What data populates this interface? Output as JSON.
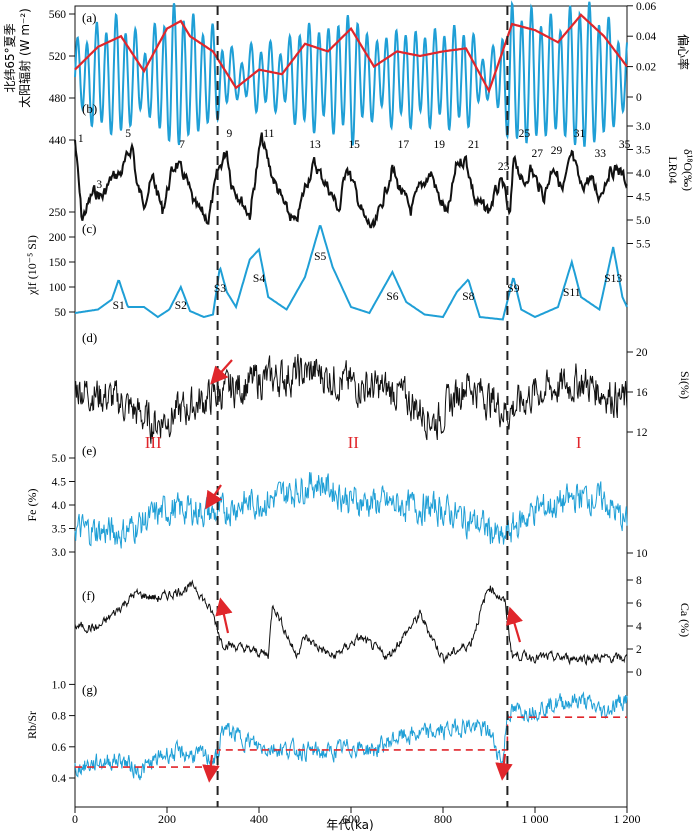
{
  "figure": {
    "x_axis": {
      "label": "年代(ka)",
      "ticks": [
        0,
        200,
        400,
        600,
        800,
        1000,
        1200
      ],
      "tick_labels": [
        "0",
        "200",
        "400",
        "600",
        "800",
        "1 000",
        "1 200"
      ],
      "range": [
        0,
        1200
      ]
    },
    "boundaries_ka": [
      310,
      940
    ],
    "stage_labels": [
      {
        "text": "III",
        "ka": 170,
        "panel": "e"
      },
      {
        "text": "II",
        "ka": 605,
        "panel": "e"
      },
      {
        "text": "I",
        "ka": 1095,
        "panel": "e"
      }
    ],
    "colors": {
      "black": "#111111",
      "blue": "#1f9fd6",
      "red": "#e0262b",
      "dashed": "#222222"
    },
    "panels": {
      "a": {
        "letter": "(a)",
        "left_label_line1": "北纬65°夏季",
        "left_label_line2": "太阳辐射 (W m⁻²)",
        "left_ticks": [
          "440",
          "480",
          "520",
          "560"
        ],
        "right_label": "偏心率",
        "right_ticks": [
          "0",
          "0.02",
          "0.04",
          "0.06"
        ]
      },
      "b": {
        "letter": "(b)",
        "right_label": "LR04",
        "right_label2": "δ¹⁸O(‰)",
        "right_ticks": [
          "3.0",
          "3.5",
          "4.0",
          "4.5",
          "5.0",
          "5.5"
        ],
        "stage_numbers": [
          {
            "n": "1",
            "ka": 2
          },
          {
            "n": "3",
            "ka": 42
          },
          {
            "n": "5",
            "ka": 105
          },
          {
            "n": "7",
            "ka": 222
          },
          {
            "n": "9",
            "ka": 325
          },
          {
            "n": "11",
            "ka": 405
          },
          {
            "n": "13",
            "ka": 505
          },
          {
            "n": "15",
            "ka": 590
          },
          {
            "n": "17",
            "ka": 697
          },
          {
            "n": "19",
            "ka": 775
          },
          {
            "n": "21",
            "ka": 850
          },
          {
            "n": "23",
            "ka": 915
          },
          {
            "n": "25",
            "ka": 960
          },
          {
            "n": "27",
            "ka": 988
          },
          {
            "n": "29",
            "ka": 1030
          },
          {
            "n": "31",
            "ka": 1080
          },
          {
            "n": "33",
            "ka": 1125
          },
          {
            "n": "35",
            "ka": 1178
          }
        ]
      },
      "c": {
        "letter": "(c)",
        "left_label": "χlf (10⁻⁵ SI)",
        "left_ticks": [
          "50",
          "100",
          "150",
          "200",
          "250"
        ],
        "paleosols": [
          {
            "s": "S1",
            "ka": 95
          },
          {
            "s": "S2",
            "ka": 230
          },
          {
            "s": "S3",
            "ka": 315
          },
          {
            "s": "S4",
            "ka": 400
          },
          {
            "s": "S5",
            "ka": 533
          },
          {
            "s": "S6",
            "ka": 690
          },
          {
            "s": "S8",
            "ka": 855
          },
          {
            "s": "S9",
            "ka": 953
          },
          {
            "s": "S11",
            "ka": 1080
          },
          {
            "s": "S13",
            "ka": 1170
          }
        ]
      },
      "d": {
        "letter": "(d)",
        "right_label": "Si(%)",
        "right_ticks": [
          "12",
          "16",
          "20"
        ]
      },
      "e": {
        "letter": "(e)",
        "left_label": "Fe (%)",
        "left_ticks": [
          "3.0",
          "3.5",
          "4.0",
          "4.5",
          "5.0"
        ],
        "right_ticks": [
          "10"
        ]
      },
      "f": {
        "letter": "(f)",
        "right_label": "Ca (%)",
        "right_ticks": [
          "0",
          "2",
          "4",
          "6",
          "8"
        ]
      },
      "g": {
        "letter": "(g)",
        "left_label": "Rb/Sr",
        "left_ticks": [
          "0.4",
          "0.6",
          "0.8",
          "1.0"
        ]
      }
    }
  },
  "chart_data": {
    "type": "line",
    "x_unit": "ka",
    "xlim": [
      0,
      1200
    ],
    "series": [
      {
        "name": "北纬65°夏季太阳辐射",
        "panel": "a",
        "unit": "W m⁻²",
        "x": [
          0,
          10,
          20,
          30,
          40,
          50,
          60,
          70,
          80,
          90,
          100,
          110,
          120,
          130,
          140,
          150,
          160,
          170,
          180,
          190,
          200,
          210,
          220,
          230,
          240,
          250,
          260,
          270,
          280,
          290,
          300
        ],
        "y": [
          480,
          505,
          492,
          468,
          492,
          515,
          486,
          470,
          498,
          512,
          476,
          490,
          540,
          458,
          500,
          520,
          470,
          492,
          500,
          480,
          500,
          536,
          458,
          505,
          545,
          450,
          490,
          520,
          476,
          500,
          510
        ]
      },
      {
        "name": "偏心率",
        "panel": "a",
        "x": [
          0,
          50,
          100,
          150,
          200,
          230,
          250,
          300,
          350,
          400,
          450,
          500,
          550,
          600,
          650,
          700,
          750,
          800,
          850,
          900,
          950,
          1000,
          1050,
          1100,
          1150,
          1200
        ],
        "y": [
          0.018,
          0.033,
          0.04,
          0.017,
          0.045,
          0.05,
          0.04,
          0.03,
          0.006,
          0.018,
          0.015,
          0.035,
          0.03,
          0.045,
          0.02,
          0.03,
          0.027,
          0.03,
          0.032,
          0.004,
          0.048,
          0.044,
          0.036,
          0.054,
          0.04,
          0.02
        ]
      },
      {
        "name": "LR04 δ¹⁸O",
        "panel": "b",
        "unit": "‰",
        "x": [
          0,
          15,
          40,
          60,
          80,
          100,
          125,
          135,
          150,
          170,
          190,
          210,
          220,
          240,
          260,
          290,
          310,
          330,
          340,
          380,
          405,
          430,
          460,
          480,
          500,
          520,
          550,
          575,
          590,
          610,
          630,
          650,
          690,
          700,
          730,
          750,
          775,
          790,
          810,
          830,
          850,
          870,
          900,
          915,
          930,
          945,
          955,
          975,
          990,
          1000,
          1020,
          1040,
          1060,
          1080,
          1100,
          1120,
          1140,
          1160,
          1180,
          1200
        ],
        "y": [
          3.3,
          5.0,
          4.4,
          4.5,
          4.1,
          4.0,
          3.4,
          4.3,
          4.6,
          4.1,
          4.8,
          4.0,
          3.8,
          4.1,
          4.7,
          5.0,
          4.0,
          3.5,
          4.2,
          4.9,
          3.25,
          4.1,
          4.8,
          5.1,
          4.3,
          3.8,
          4.3,
          4.8,
          3.8,
          4.4,
          5.0,
          5.2,
          3.9,
          4.2,
          4.8,
          4.3,
          4.0,
          4.5,
          4.9,
          3.8,
          3.7,
          4.6,
          4.8,
          4.4,
          4.2,
          5.0,
          3.6,
          4.3,
          3.9,
          4.1,
          4.5,
          3.8,
          4.4,
          3.6,
          4.3,
          4.1,
          4.5,
          4.0,
          3.9,
          4.2
        ]
      },
      {
        "name": "χlf",
        "panel": "c",
        "unit": "10⁻⁵ SI",
        "x": [
          0,
          50,
          80,
          95,
          115,
          150,
          180,
          205,
          230,
          250,
          280,
          300,
          315,
          330,
          350,
          380,
          400,
          420,
          460,
          500,
          533,
          560,
          600,
          640,
          690,
          720,
          760,
          800,
          830,
          855,
          880,
          930,
          953,
          970,
          1000,
          1050,
          1080,
          1100,
          1140,
          1170,
          1190,
          1200
        ],
        "y": [
          48,
          55,
          75,
          115,
          60,
          60,
          40,
          55,
          100,
          52,
          40,
          45,
          140,
          90,
          60,
          155,
          175,
          80,
          55,
          120,
          225,
          140,
          60,
          48,
          130,
          70,
          45,
          40,
          90,
          115,
          40,
          35,
          120,
          55,
          40,
          60,
          150,
          80,
          55,
          180,
          80,
          60
        ]
      },
      {
        "name": "Si",
        "panel": "d",
        "unit": "%",
        "x": [
          0,
          100,
          170,
          250,
          310,
          400,
          450,
          520,
          600,
          700,
          785,
          850,
          940,
          1000,
          1100,
          1200
        ],
        "y": [
          16.5,
          15.0,
          12.8,
          14.5,
          15.8,
          17.2,
          17.5,
          18.0,
          16.8,
          16.0,
          13.0,
          17.0,
          14.0,
          16.0,
          17.0,
          15.0
        ]
      },
      {
        "name": "Fe",
        "panel": "e",
        "unit": "%",
        "x": [
          0,
          100,
          200,
          260,
          310,
          350,
          420,
          500,
          530,
          600,
          700,
          800,
          900,
          930,
          940,
          1000,
          1050,
          1100,
          1150,
          1200
        ],
        "y": [
          3.5,
          3.4,
          3.9,
          3.9,
          3.8,
          4.0,
          4.1,
          4.4,
          4.5,
          4.1,
          4.0,
          3.9,
          3.5,
          3.2,
          3.4,
          3.9,
          4.0,
          4.2,
          4.1,
          3.6
        ]
      },
      {
        "name": "Ca",
        "panel": "f",
        "unit": "%",
        "x": [
          0,
          50,
          130,
          180,
          260,
          300,
          320,
          420,
          430,
          480,
          500,
          560,
          620,
          680,
          750,
          800,
          860,
          900,
          935,
          950,
          1000,
          1100,
          1200
        ],
        "y": [
          4.0,
          3.8,
          6.8,
          6.4,
          7.5,
          5.0,
          2.5,
          1.5,
          6.0,
          1.5,
          3.0,
          1.3,
          3.0,
          1.3,
          5.0,
          1.2,
          2.5,
          7.5,
          6.0,
          1.5,
          1.3,
          1.2,
          1.2
        ]
      },
      {
        "name": "Rb/Sr",
        "panel": "g",
        "x": [
          0,
          50,
          100,
          140,
          200,
          260,
          310,
          320,
          400,
          480,
          550,
          600,
          650,
          700,
          800,
          850,
          900,
          930,
          940,
          1000,
          1050,
          1100,
          1150,
          1200
        ],
        "y": [
          0.46,
          0.5,
          0.52,
          0.44,
          0.56,
          0.55,
          0.52,
          0.72,
          0.6,
          0.58,
          0.56,
          0.6,
          0.58,
          0.66,
          0.7,
          0.74,
          0.7,
          0.5,
          0.82,
          0.84,
          0.88,
          0.9,
          0.82,
          0.92
        ]
      },
      {
        "name": "Rb/Sr mean",
        "panel": "g",
        "style": "dashed",
        "x": [
          0,
          310,
          310,
          940,
          940,
          1200
        ],
        "y": [
          0.47,
          0.47,
          0.58,
          0.58,
          0.79,
          0.79
        ]
      }
    ]
  }
}
